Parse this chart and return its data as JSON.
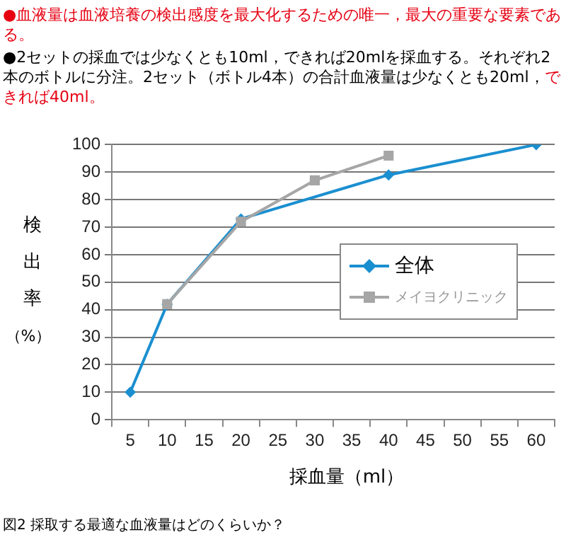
{
  "chart_data": {
    "type": "line",
    "xlabel": "採血量（ml）",
    "ylabel": "検出率（%）",
    "annotations": [
      "●血液量は血液培養の検出感度を最大化するための唯一，最大の重要な要素である。",
      "●2セットの採血では少なくとも10ml，できれば20mlを採血する。それぞれ2本のボトルに分注。2セット（ボトル4本）の合計血液量は少なくとも20ml，",
      "できれば40ml。",
      "図2  採取する最適な血液量はどのくらいか？"
    ],
    "categories": [
      "5",
      "10",
      "15",
      "20",
      "25",
      "30",
      "35",
      "40",
      "45",
      "50",
      "55",
      "60"
    ],
    "series": [
      {
        "name": "全体",
        "color": "#1a8fd0",
        "marker": "diamond",
        "values": [
          10,
          42,
          null,
          73,
          null,
          null,
          null,
          89,
          null,
          null,
          null,
          100
        ]
      },
      {
        "name": "メイヨクリニック",
        "color": "#a6a6a6",
        "marker": "square",
        "values": [
          null,
          42,
          null,
          72,
          null,
          87,
          null,
          96,
          null,
          null,
          null,
          null
        ]
      }
    ],
    "ylim": [
      0,
      100
    ],
    "yticks": [
      0,
      10,
      20,
      30,
      40,
      50,
      60,
      70,
      80,
      90,
      100
    ],
    "grid": "y",
    "legend": "right"
  }
}
